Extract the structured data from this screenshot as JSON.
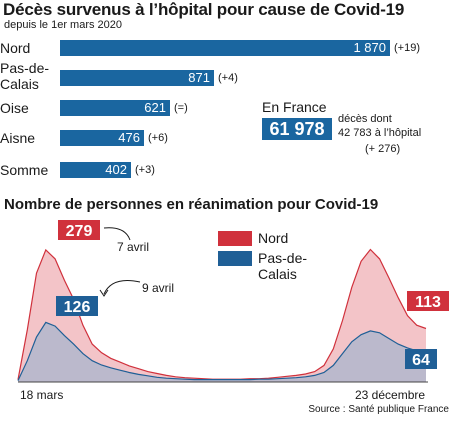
{
  "header": {
    "title": "Décès survenus à l’hôpital pour cause de Covid-19",
    "subtitle": "depuis le 1er mars 2020"
  },
  "chart_data": [
    {
      "type": "bar",
      "orientation": "horizontal",
      "categories": [
        "Nord",
        "Pas-de-Calais",
        "Oise",
        "Aisne",
        "Somme"
      ],
      "values": [
        1870,
        871,
        621,
        476,
        402
      ],
      "value_labels": [
        "1 870",
        "871",
        "621",
        "476",
        "402"
      ],
      "deltas": [
        "(+19)",
        "(+4)",
        "(=)",
        "(+6)",
        "(+3)"
      ],
      "color": "#1a66a0"
    },
    {
      "type": "area",
      "title": "Nombre de personnes en réanimation pour Covid-19",
      "x_start_label": "18 mars",
      "x_end_label": "23 décembre",
      "series": [
        {
          "name": "Nord",
          "color": "#d0313c",
          "fill": "#f3c4c8",
          "values": [
            5,
            110,
            230,
            279,
            260,
            215,
            175,
            120,
            80,
            62,
            50,
            42,
            34,
            28,
            22,
            18,
            14,
            11,
            9,
            8,
            7,
            6,
            6,
            6,
            6,
            7,
            7,
            8,
            10,
            12,
            14,
            17,
            22,
            35,
            70,
            130,
            200,
            255,
            280,
            260,
            220,
            178,
            140,
            120,
            113
          ]
        },
        {
          "name": "Pas-de-Calais",
          "color": "#1f5f96",
          "fill": "#b0b7cc",
          "values": [
            3,
            45,
            95,
            126,
            118,
            98,
            80,
            60,
            45,
            36,
            30,
            25,
            20,
            16,
            13,
            10,
            8,
            7,
            6,
            5,
            5,
            5,
            5,
            5,
            5,
            5,
            6,
            6,
            7,
            8,
            9,
            11,
            14,
            20,
            35,
            60,
            85,
            100,
            108,
            104,
            92,
            80,
            72,
            66,
            64
          ]
        }
      ],
      "ylim": [
        0,
        300
      ],
      "callouts": [
        {
          "value": "279",
          "text": "7 avril",
          "color": "#d0313c"
        },
        {
          "value": "126",
          "text": "9 avril",
          "color": "#1f5f96"
        },
        {
          "value": "113",
          "color": "#d0313c"
        },
        {
          "value": "64",
          "color": "#1f5f96"
        }
      ]
    }
  ],
  "france": {
    "label": "En France",
    "total": "61 978",
    "text_line1": "décès dont",
    "text_line2": "42 783 à l’hôpital",
    "delta": "(+ 276)"
  },
  "legend": {
    "nord": "Nord",
    "pdc_line1": "Pas-de-",
    "pdc_line2": "Calais"
  },
  "labels": {
    "pdc_line1": "Pas-de-",
    "pdc_line2": "Calais"
  },
  "source": "Source : Santé publique France"
}
